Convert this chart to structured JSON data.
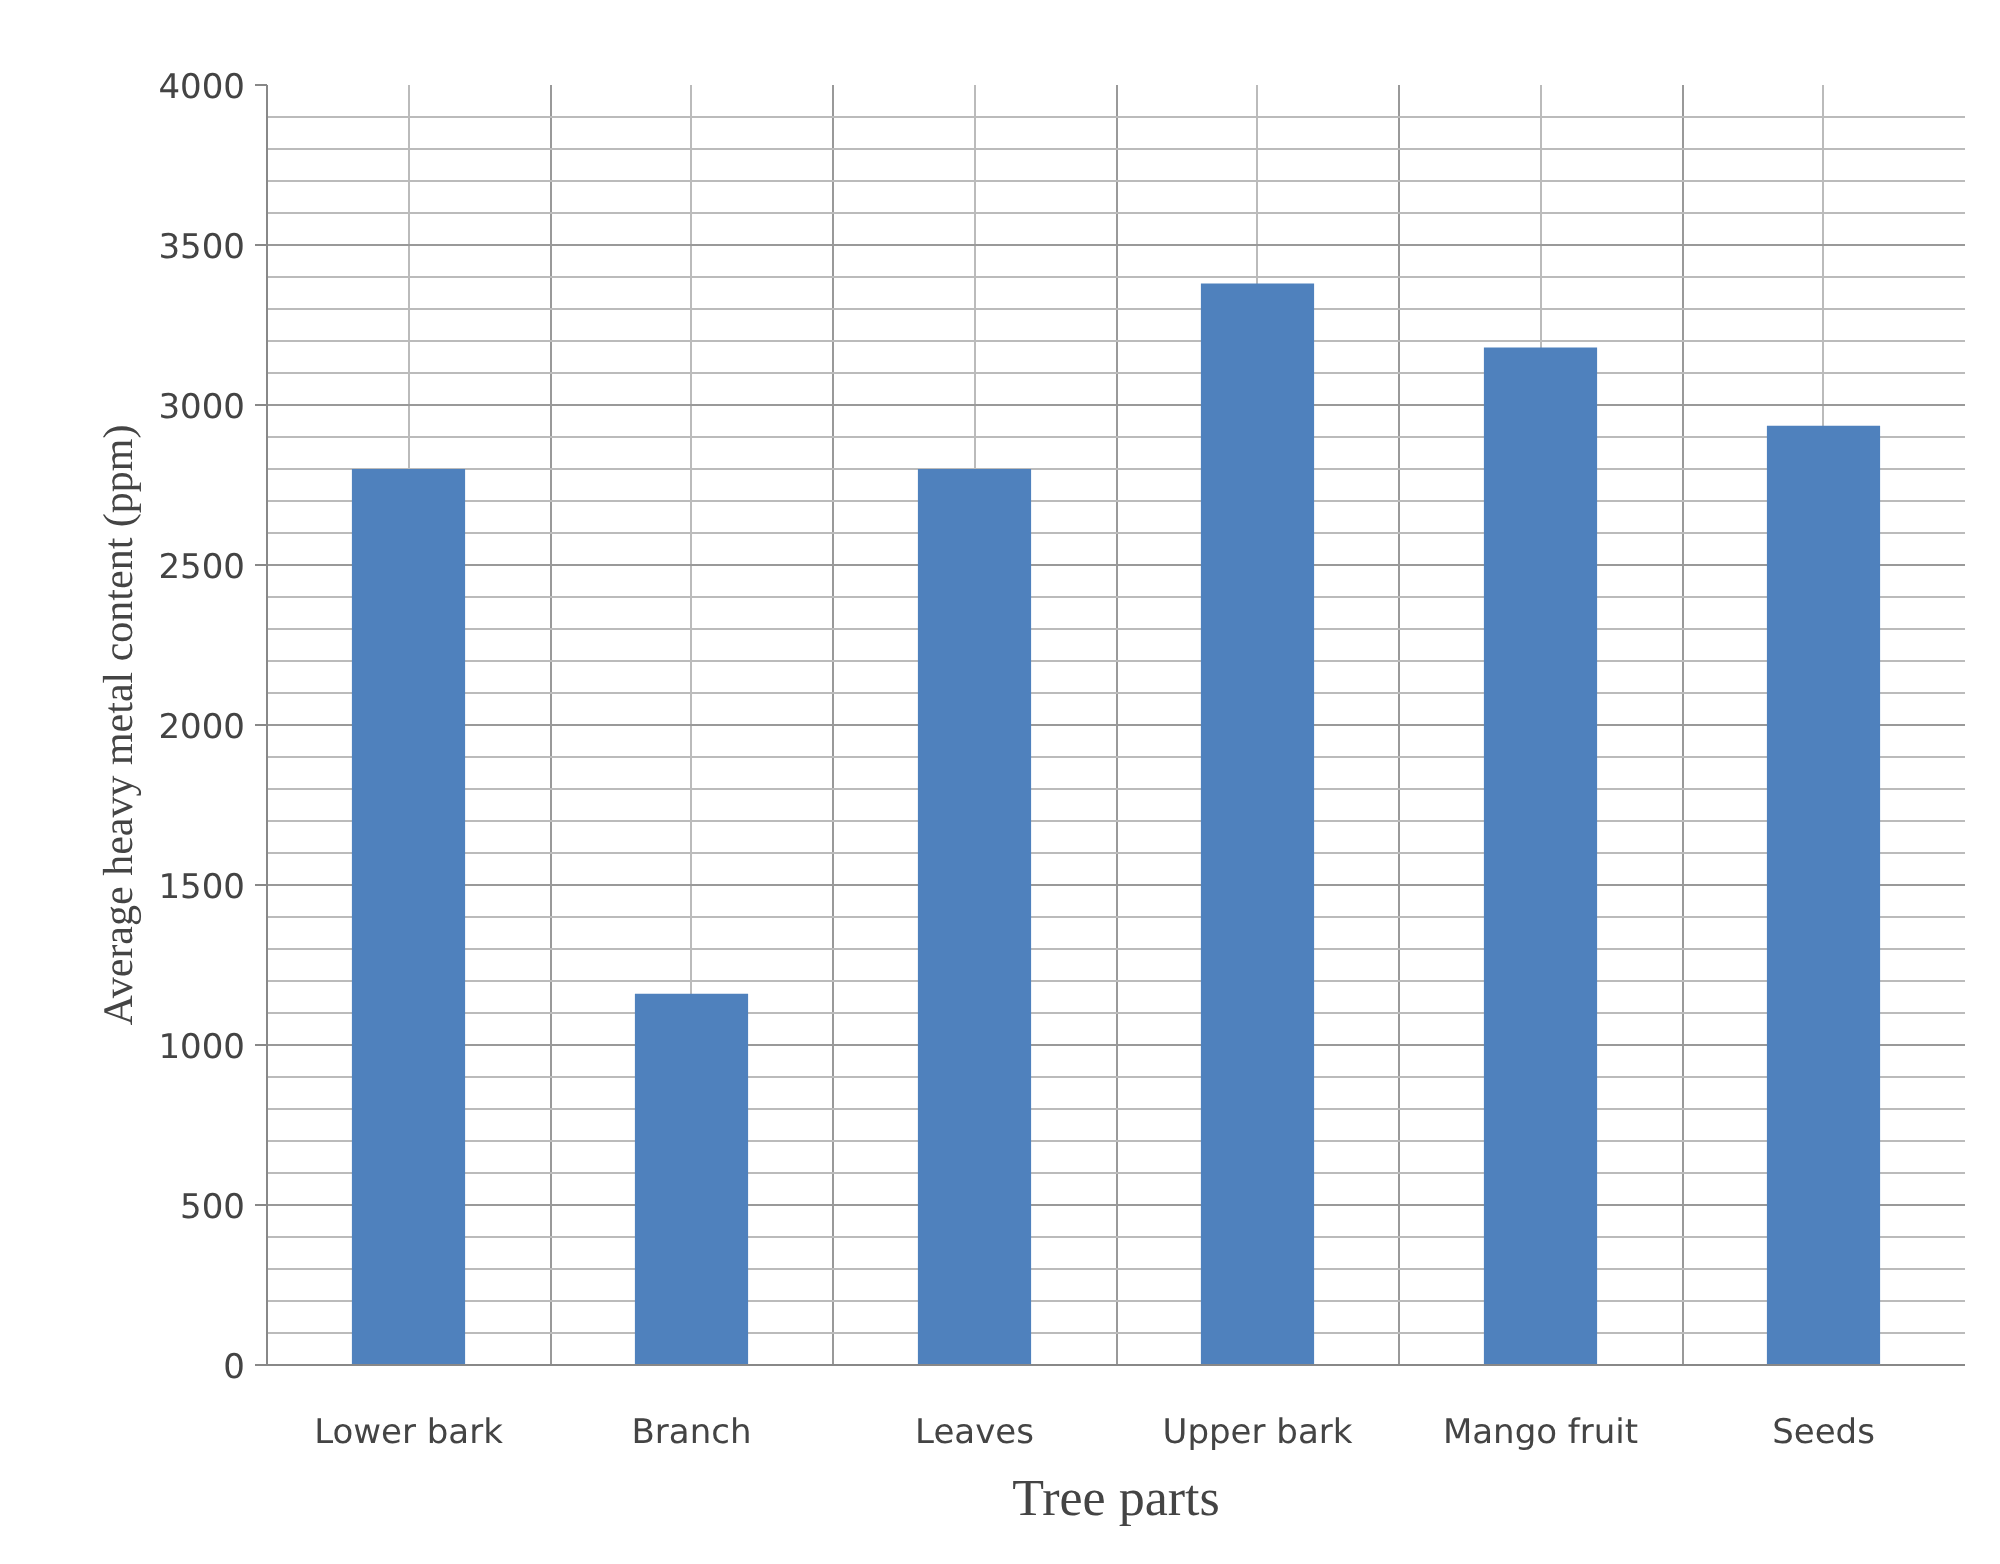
{
  "chart_data": {
    "type": "bar",
    "xlabel": "Tree parts",
    "ylabel": "Average heavy metal content (ppm)",
    "categories": [
      "Lower bark",
      "Branch",
      "Leaves",
      "Upper bark",
      "Mango fruit",
      "Seeds"
    ],
    "values": [
      2800,
      1160,
      2800,
      3380,
      3180,
      2935
    ],
    "color": "#4f81bd",
    "ylim": [
      0,
      4000
    ],
    "yticks": [
      0,
      500,
      1000,
      1500,
      2000,
      2500,
      3000,
      3500,
      4000
    ],
    "grid": true
  }
}
